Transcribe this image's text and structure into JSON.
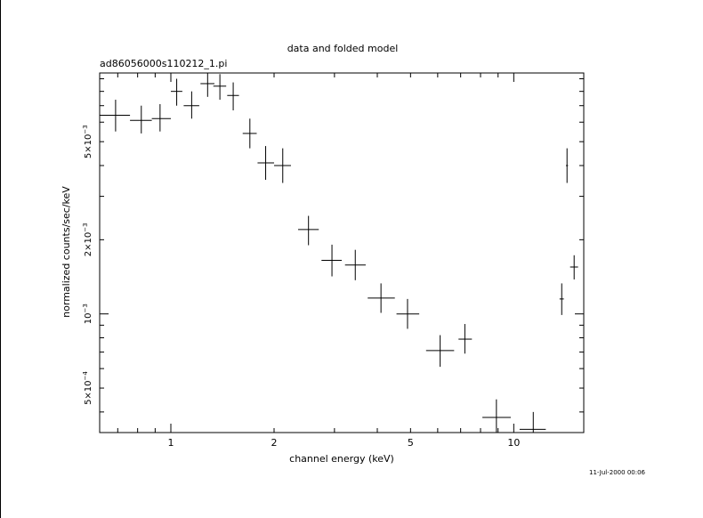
{
  "chart_data": {
    "type": "scatter",
    "title": "data and folded model",
    "subtitle": "ad86056000s110212_1.pi",
    "xlabel": "channel energy (keV)",
    "ylabel": "normalized counts/sec/keV",
    "timestamp": "11-Jul-2000 00:06",
    "x_scale": "log",
    "y_scale": "log",
    "xlim": [
      0.62,
      16.0
    ],
    "ylim": [
      0.00033,
      0.0095
    ],
    "x_tick_labels": [
      {
        "value": 1,
        "label": "1"
      },
      {
        "value": 2,
        "label": "2"
      },
      {
        "value": 5,
        "label": "5"
      },
      {
        "value": 10,
        "label": "10"
      }
    ],
    "y_tick_labels": [
      {
        "value": 0.0005,
        "base": "5×10",
        "exp": "−4"
      },
      {
        "value": 0.001,
        "base": "10",
        "exp": "−3"
      },
      {
        "value": 0.002,
        "base": "2×10",
        "exp": "−3"
      },
      {
        "value": 0.005,
        "base": "5×10",
        "exp": "−3"
      }
    ],
    "points": [
      {
        "x": 0.69,
        "xlo": 0.62,
        "xhi": 0.76,
        "y": 0.0064,
        "ylo": 0.0055,
        "yhi": 0.0074
      },
      {
        "x": 0.82,
        "xlo": 0.76,
        "xhi": 0.88,
        "y": 0.0061,
        "ylo": 0.0054,
        "yhi": 0.007
      },
      {
        "x": 0.93,
        "xlo": 0.88,
        "xhi": 1.0,
        "y": 0.0062,
        "ylo": 0.0055,
        "yhi": 0.0071
      },
      {
        "x": 1.04,
        "xlo": 1.0,
        "xhi": 1.08,
        "y": 0.008,
        "ylo": 0.007,
        "yhi": 0.009
      },
      {
        "x": 1.15,
        "xlo": 1.09,
        "xhi": 1.21,
        "y": 0.007,
        "ylo": 0.0062,
        "yhi": 0.008
      },
      {
        "x": 1.28,
        "xlo": 1.22,
        "xhi": 1.34,
        "y": 0.0086,
        "ylo": 0.0076,
        "yhi": 0.0095
      },
      {
        "x": 1.39,
        "xlo": 1.33,
        "xhi": 1.45,
        "y": 0.0084,
        "ylo": 0.0074,
        "yhi": 0.0094
      },
      {
        "x": 1.52,
        "xlo": 1.46,
        "xhi": 1.58,
        "y": 0.0077,
        "ylo": 0.0067,
        "yhi": 0.0087
      },
      {
        "x": 1.7,
        "xlo": 1.62,
        "xhi": 1.78,
        "y": 0.0054,
        "ylo": 0.0047,
        "yhi": 0.0062
      },
      {
        "x": 1.89,
        "xlo": 1.79,
        "xhi": 2.0,
        "y": 0.0041,
        "ylo": 0.0035,
        "yhi": 0.0048
      },
      {
        "x": 2.12,
        "xlo": 2.0,
        "xhi": 2.24,
        "y": 0.004,
        "ylo": 0.0034,
        "yhi": 0.0047
      },
      {
        "x": 2.52,
        "xlo": 2.35,
        "xhi": 2.7,
        "y": 0.0022,
        "ylo": 0.0019,
        "yhi": 0.0025
      },
      {
        "x": 2.95,
        "xlo": 2.75,
        "xhi": 3.15,
        "y": 0.00165,
        "ylo": 0.00142,
        "yhi": 0.00191
      },
      {
        "x": 3.45,
        "xlo": 3.22,
        "xhi": 3.7,
        "y": 0.00158,
        "ylo": 0.00137,
        "yhi": 0.00182
      },
      {
        "x": 4.1,
        "xlo": 3.75,
        "xhi": 4.5,
        "y": 0.00116,
        "ylo": 0.00101,
        "yhi": 0.00133
      },
      {
        "x": 4.9,
        "xlo": 4.55,
        "xhi": 5.3,
        "y": 0.001,
        "ylo": 0.00087,
        "yhi": 0.00115
      },
      {
        "x": 6.1,
        "xlo": 5.55,
        "xhi": 6.7,
        "y": 0.00071,
        "ylo": 0.00061,
        "yhi": 0.00082
      },
      {
        "x": 7.2,
        "xlo": 6.9,
        "xhi": 7.55,
        "y": 0.00079,
        "ylo": 0.00069,
        "yhi": 0.00091
      },
      {
        "x": 8.9,
        "xlo": 8.1,
        "xhi": 9.8,
        "y": 0.00038,
        "ylo": 0.00033,
        "yhi": 0.00045
      },
      {
        "x": 11.4,
        "xlo": 10.4,
        "xhi": 12.4,
        "y": 0.00034,
        "ylo": 0.00033,
        "yhi": 0.0004
      },
      {
        "x": 13.8,
        "xlo": 13.6,
        "xhi": 14.0,
        "y": 0.00115,
        "ylo": 0.00099,
        "yhi": 0.00133
      },
      {
        "x": 14.3,
        "xlo": 14.2,
        "xhi": 14.4,
        "y": 0.004,
        "ylo": 0.0034,
        "yhi": 0.0047
      },
      {
        "x": 15.0,
        "xlo": 14.6,
        "xhi": 15.4,
        "y": 0.00155,
        "ylo": 0.00138,
        "yhi": 0.00173
      }
    ]
  }
}
